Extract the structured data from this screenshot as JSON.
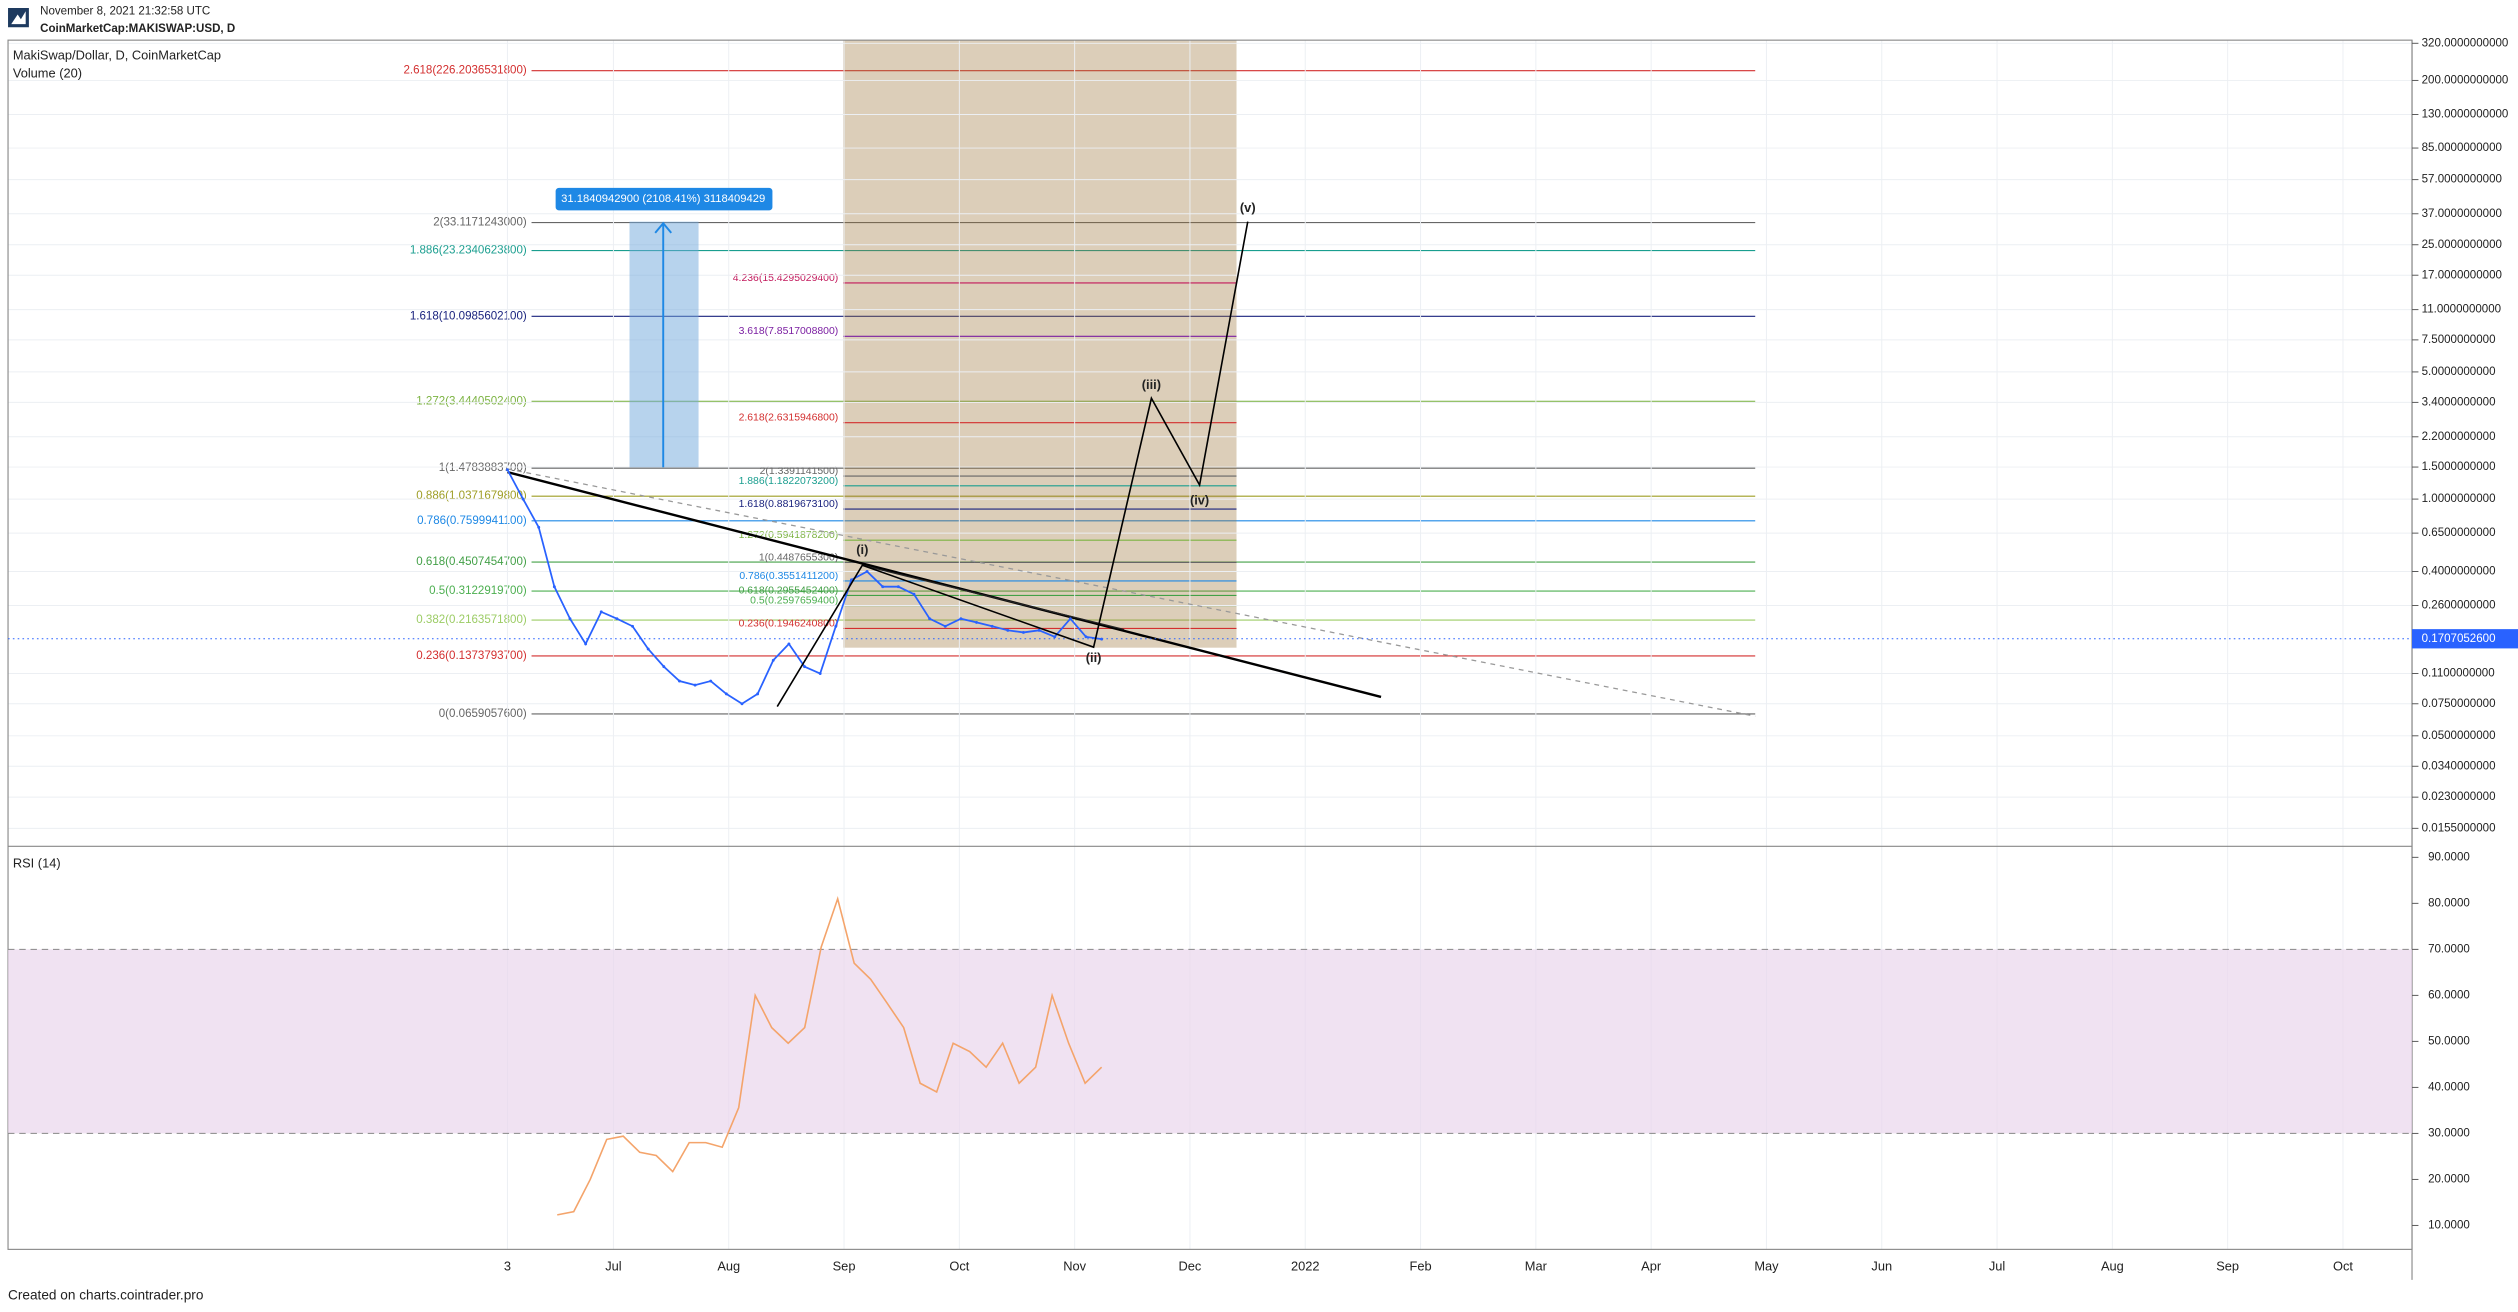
{
  "header": {
    "date": "November 8, 2021 21:32:58 UTC",
    "symbol": "CoinMarketCap:MAKISWAP:USD, D"
  },
  "price_panel": {
    "title": "MakiSwap/Dollar, D, CoinMarketCap",
    "volume_label": "Volume (20)",
    "scale": "log",
    "ylim": [
      0.01235,
      333
    ],
    "yticks": [
      {
        "value": 320,
        "label": "320.0000000000"
      },
      {
        "value": 200,
        "label": "200.0000000000"
      },
      {
        "value": 130,
        "label": "130.0000000000"
      },
      {
        "value": 85,
        "label": "85.0000000000"
      },
      {
        "value": 57,
        "label": "57.0000000000"
      },
      {
        "value": 37,
        "label": "37.0000000000"
      },
      {
        "value": 25,
        "label": "25.0000000000"
      },
      {
        "value": 17,
        "label": "17.0000000000"
      },
      {
        "value": 11,
        "label": "11.0000000000"
      },
      {
        "value": 7.5,
        "label": "7.5000000000"
      },
      {
        "value": 5,
        "label": "5.0000000000"
      },
      {
        "value": 3.4,
        "label": "3.4000000000"
      },
      {
        "value": 2.2,
        "label": "2.2000000000"
      },
      {
        "value": 1.5,
        "label": "1.5000000000"
      },
      {
        "value": 1,
        "label": "1.0000000000"
      },
      {
        "value": 0.65,
        "label": "0.6500000000"
      },
      {
        "value": 0.4,
        "label": "0.4000000000"
      },
      {
        "value": 0.26,
        "label": "0.2600000000"
      },
      {
        "value": 0.11,
        "label": "0.1100000000"
      },
      {
        "value": 0.075,
        "label": "0.0750000000"
      },
      {
        "value": 0.05,
        "label": "0.0500000000"
      },
      {
        "value": 0.034,
        "label": "0.0340000000"
      },
      {
        "value": 0.023,
        "label": "0.0230000000"
      },
      {
        "value": 0.0155,
        "label": "0.0155000000"
      }
    ],
    "current_price": {
      "value": 0.17070526,
      "label": "0.1707052600"
    },
    "close": [
      1.45,
      1.0,
      0.7,
      0.33,
      0.22,
      0.16,
      0.24,
      0.22,
      0.2,
      0.15,
      0.12,
      0.1,
      0.095,
      0.1,
      0.085,
      0.075,
      0.085,
      0.13,
      0.16,
      0.12,
      0.11,
      0.2,
      0.36,
      0.4,
      0.33,
      0.33,
      0.3,
      0.22,
      0.2,
      0.22,
      0.21,
      0.2,
      0.19,
      0.185,
      0.19,
      0.175,
      0.22,
      0.175,
      0.17
    ],
    "price_color": "#2962ff",
    "fib_sets": [
      {
        "levels": [
          {
            "value": 226.20365318,
            "label": "2.618(226.2036531800)",
            "color": "#d32f2f",
            "fill": "#d4b87f"
          },
          {
            "value": 33.1171243,
            "label": "2(33.1171243000)",
            "color": "#666666",
            "fill": "#b0b57b"
          },
          {
            "value": 23.23406238,
            "label": "1.886(23.2340623800)",
            "color": "#1a9e8f",
            "fill": "#aab77c"
          },
          {
            "value": 10.09856021,
            "label": "1.618(10.0985602100)",
            "color": "#1a237e",
            "fill": "#a9bf86"
          },
          {
            "value": 3.44405024,
            "label": "1.272(3.4440502400)",
            "color": "#7cb342",
            "fill": "#a6d6c6"
          },
          {
            "value": 1.47838837,
            "label": "1(1.4783883700)",
            "color": "#666666",
            "fill": "#a6d6c6"
          },
          {
            "value": 1.03716798,
            "label": "0.886(1.0371679800)",
            "color": "#9e9d24",
            "fill": "#e6e6e6"
          },
          {
            "value": 0.75999411,
            "label": "0.786(0.7599941100)",
            "color": "#1e88e5",
            "fill": "#d9eaf7"
          },
          {
            "value": 0.45074547,
            "label": "0.618(0.4507454700)",
            "color": "#43a047",
            "fill": "#d6f0dc"
          },
          {
            "value": 0.31229197,
            "label": "0.5(0.3122919700)",
            "color": "#4caf50",
            "fill": "#dcf1d4"
          },
          {
            "value": 0.21635718,
            "label": "0.382(0.2163571800)",
            "color": "#9ccc65",
            "fill": "#eef5d6"
          },
          {
            "value": 0.13737937,
            "label": "0.236(0.1373793700)",
            "color": "#d32f2f",
            "fill": "#f6d2d2"
          },
          {
            "value": 0.06590576,
            "label": "0(0.0659057600)",
            "color": "#666666"
          }
        ]
      },
      {
        "overlay_color": "#9c7436",
        "levels": [
          {
            "value": 15.42950294,
            "label": "4.236(15.4295029400)",
            "color": "#c2185b"
          },
          {
            "value": 7.85170088,
            "label": "3.618(7.8517008800)",
            "color": "#7b1fa2"
          },
          {
            "value": 2.63159468,
            "label": "2.618(2.6315946800)",
            "color": "#d32f2f"
          },
          {
            "value": 1.33911415,
            "label": "2(1.3391141500)",
            "color": "#666666"
          },
          {
            "value": 1.18220732,
            "label": "1.886(1.1822073200)",
            "color": "#1a9e8f"
          },
          {
            "value": 0.88196731,
            "label": "1.618(0.8819673100)",
            "color": "#1a237e"
          },
          {
            "value": 0.59418782,
            "label": "1.272(0.5941878200)",
            "color": "#7cb342"
          },
          {
            "value": 0.44876553,
            "label": "1(0.4487655300)",
            "color": "#666666"
          },
          {
            "value": 0.35514112,
            "label": "0.786(0.3551411200)",
            "color": "#1e88e5"
          },
          {
            "value": 0.29554524,
            "label": "0.618(0.2955452400)",
            "color": "#43a047"
          },
          {
            "value": 0.25976594,
            "label": "0.5(0.2597659400)",
            "color": "#4caf50"
          },
          {
            "value": 0.19462408,
            "label": "0.236(0.1946240800)",
            "color": "#d32f2f"
          }
        ]
      }
    ],
    "measure_label": "31.1840942900 (2108.41%) 3118409429",
    "waves": [
      "(i)",
      "(ii)",
      "(iii)",
      "(iv)",
      "(v)"
    ]
  },
  "rsi_panel": {
    "title": "RSI (14)",
    "ylim": [
      4.8,
      92.4
    ],
    "yticks": [
      {
        "value": 90,
        "label": "90.0000"
      },
      {
        "value": 80,
        "label": "80.0000"
      },
      {
        "value": 70,
        "label": "70.0000"
      },
      {
        "value": 60,
        "label": "60.0000"
      },
      {
        "value": 50,
        "label": "50.0000"
      },
      {
        "value": 40,
        "label": "40.0000"
      },
      {
        "value": 30,
        "label": "30.0000"
      },
      {
        "value": 20,
        "label": "20.0000"
      },
      {
        "value": 10,
        "label": "10.0000"
      }
    ],
    "band": [
      30,
      70
    ],
    "color": "#f4a46b",
    "values": [
      12.3,
      13,
      20,
      28.7,
      29.4,
      25.9,
      25.2,
      21.7,
      28,
      28,
      27,
      35.6,
      60,
      53,
      49.6,
      53,
      70.5,
      81,
      67,
      63.5,
      58.3,
      53,
      40.9,
      39,
      49.6,
      47.8,
      44.4,
      49.6,
      40.9,
      44.4,
      60,
      49.6,
      40.9,
      44.4
    ]
  },
  "time_axis": {
    "labels": [
      "3",
      "Jul",
      "Aug",
      "Sep",
      "Oct",
      "Nov",
      "Dec",
      "2022",
      "Feb",
      "Mar",
      "Apr",
      "May",
      "Jun",
      "Jul",
      "Aug",
      "Sep",
      "Oct"
    ]
  },
  "footer": "Created on charts.cointrader.pro"
}
